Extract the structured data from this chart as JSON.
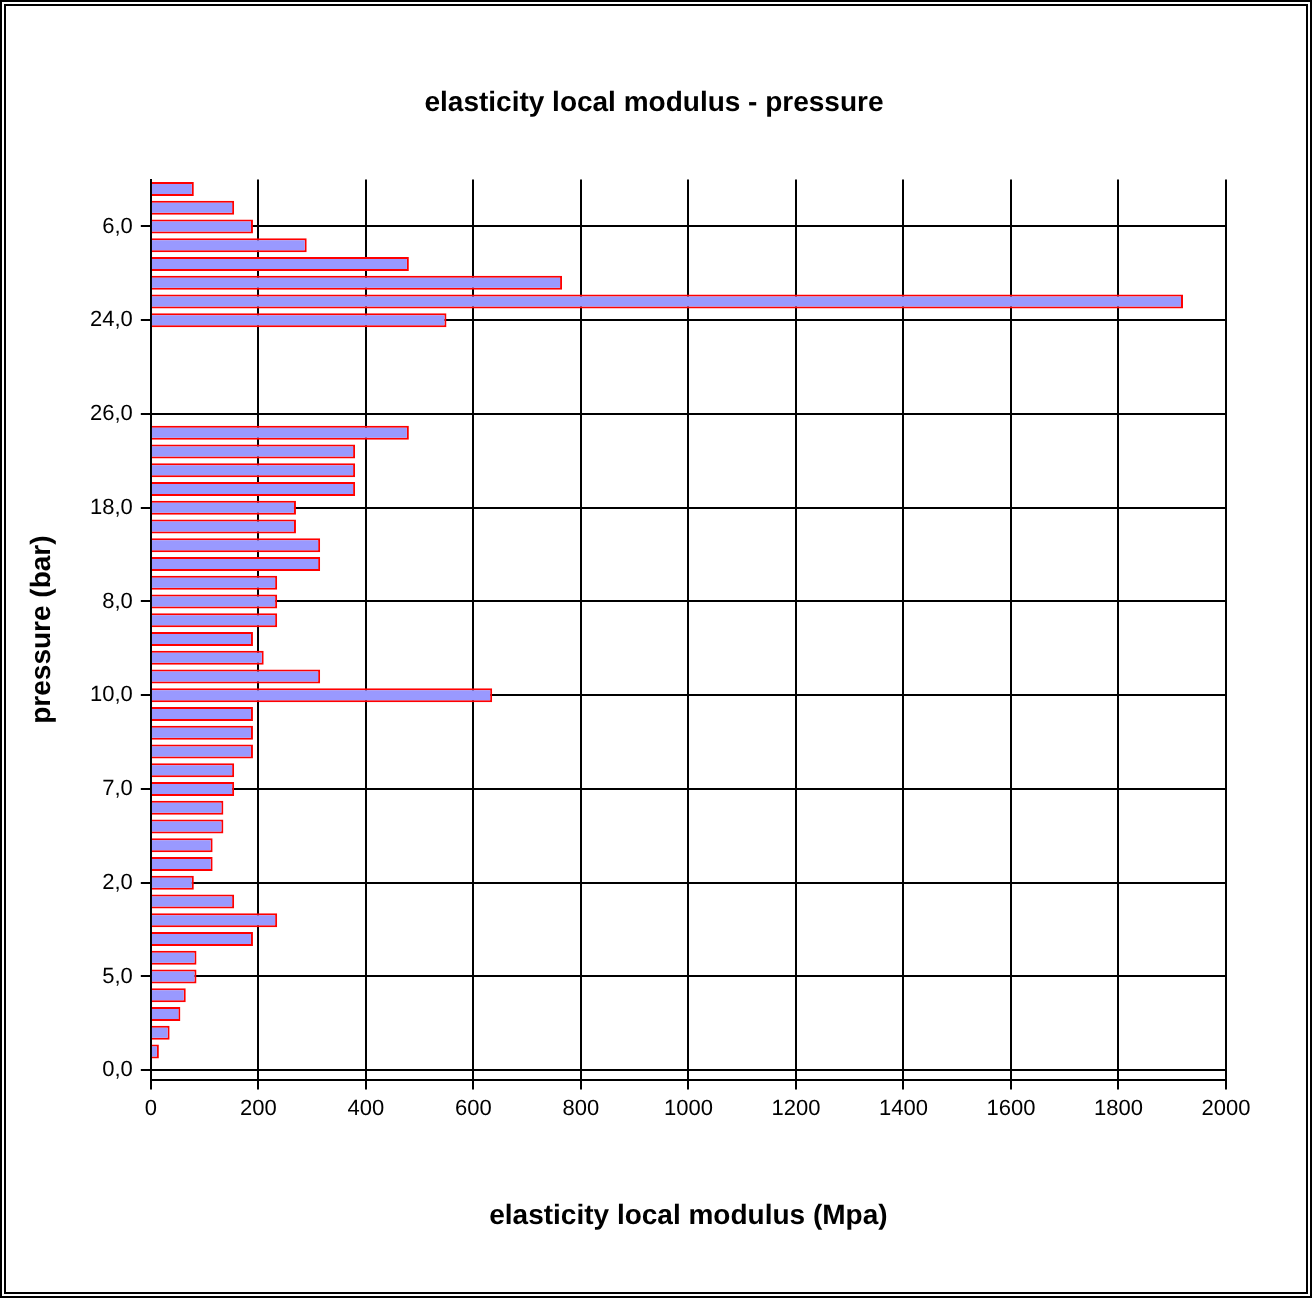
{
  "chart_data": {
    "type": "bar",
    "orientation": "horizontal",
    "title": "elasticity local modulus - pressure",
    "xlabel": "elasticity local modulus (Mpa)",
    "ylabel": "pressure (bar)",
    "categories": [
      null,
      null,
      "6,0",
      null,
      null,
      null,
      null,
      "24,0",
      null,
      null,
      null,
      null,
      "26,0",
      null,
      null,
      null,
      null,
      "18,0",
      null,
      null,
      null,
      null,
      "8,0",
      null,
      null,
      null,
      null,
      "10,0",
      null,
      null,
      null,
      null,
      "7,0",
      null,
      null,
      null,
      null,
      "2,0",
      null,
      null,
      null,
      null,
      "5,0",
      null,
      null,
      null,
      null,
      "0,0"
    ],
    "series": [
      {
        "color": "#9999ff",
        "values": [
          80,
          155,
          190,
          290,
          480,
          765,
          1920,
          550,
          null,
          null,
          null,
          null,
          null,
          480,
          380,
          380,
          380,
          270,
          270,
          315,
          315,
          235,
          235,
          235,
          190,
          210,
          315,
          635,
          190,
          190,
          190,
          155,
          155,
          135,
          135,
          115,
          115,
          80,
          155,
          235,
          190,
          85,
          85,
          65,
          55,
          35,
          15,
          0
        ]
      }
    ],
    "xlim": [
      0,
      2000
    ],
    "xticks": [
      0,
      200,
      400,
      600,
      800,
      1000,
      1200,
      1400,
      1600,
      1800,
      2000
    ],
    "grid": true,
    "legend": false
  }
}
